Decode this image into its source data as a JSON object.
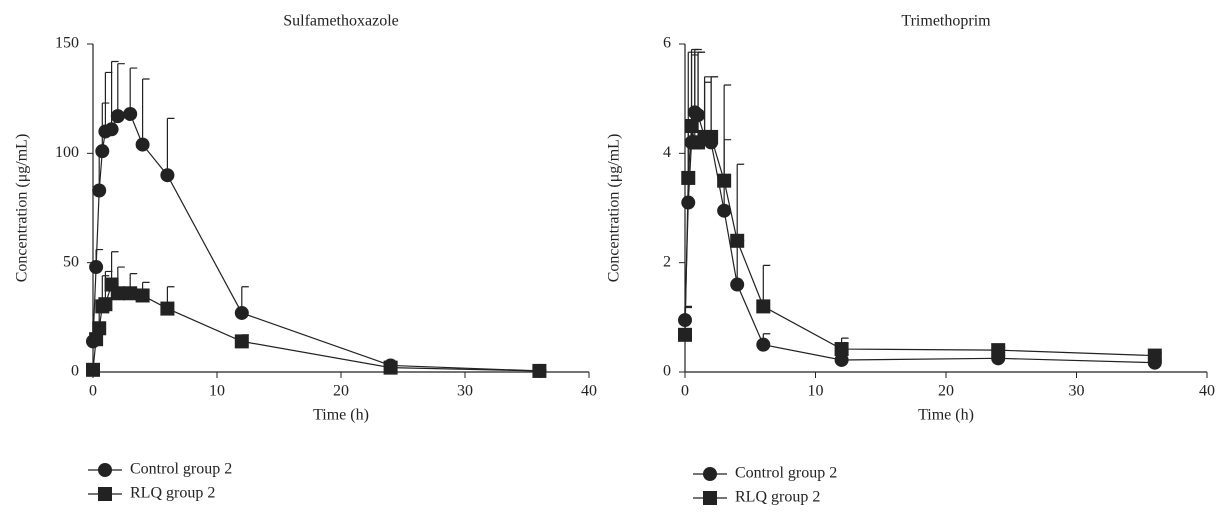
{
  "chart_data": [
    {
      "type": "line",
      "title": "Sulfamethoxazole",
      "x_label": "Time (h)",
      "y_label": "Concentration (μg/mL)",
      "x": [
        0,
        0.25,
        0.5,
        0.75,
        1,
        1.5,
        2,
        3,
        4,
        6,
        12,
        24,
        36
      ],
      "xlim": [
        0,
        40
      ],
      "xticks": [
        0,
        10,
        20,
        30,
        40
      ],
      "ylim": [
        0,
        150
      ],
      "yticks": [
        0,
        50,
        100,
        150
      ],
      "series": [
        {
          "name": "Control group 2",
          "color": "#222222",
          "marker": "circle",
          "values": [
            14,
            48,
            83,
            101,
            110,
            111,
            117,
            118,
            104,
            90,
            27,
            3,
            0.5
          ],
          "errors": [
            2,
            8,
            17,
            22,
            27,
            31,
            24,
            21,
            30,
            26,
            12,
            1,
            0.5
          ]
        },
        {
          "name": "RLQ group 2",
          "color": "#222222",
          "marker": "square",
          "values": [
            1,
            15,
            20,
            30,
            31,
            40,
            36,
            36,
            35,
            29,
            14,
            2,
            0.5
          ],
          "errors": [
            0.5,
            5,
            10,
            14,
            15,
            15,
            12,
            9,
            6,
            10,
            3,
            1,
            0.5
          ]
        }
      ]
    },
    {
      "type": "line",
      "title": "Trimethoprim",
      "x_label": "Time (h)",
      "y_label": "Concentration (μg/mL)",
      "x": [
        0,
        0.25,
        0.5,
        0.75,
        1,
        1.5,
        2,
        3,
        4,
        6,
        12,
        24,
        36
      ],
      "xlim": [
        0,
        40
      ],
      "xticks": [
        0,
        10,
        20,
        30,
        40
      ],
      "ylim": [
        0,
        6
      ],
      "yticks": [
        0,
        2,
        4,
        6
      ],
      "series": [
        {
          "name": "Control group 2",
          "color": "#222222",
          "marker": "circle",
          "values": [
            0.95,
            3.1,
            4.2,
            4.75,
            4.7,
            4.3,
            4.2,
            2.95,
            1.6,
            0.5,
            0.22,
            0.25,
            0.17
          ],
          "errors": [
            0.25,
            1.4,
            1.6,
            1.15,
            1.15,
            1.0,
            1.2,
            1.3,
            0.8,
            0.2,
            0.1,
            0.05,
            0.05
          ]
        },
        {
          "name": "RLQ group 2",
          "color": "#222222",
          "marker": "square",
          "values": [
            0.68,
            3.55,
            4.5,
            4.2,
            4.2,
            4.3,
            4.3,
            3.5,
            2.4,
            1.2,
            0.42,
            0.4,
            0.3
          ],
          "errors": [
            0.5,
            2.3,
            1.4,
            1.65,
            1.65,
            1.1,
            1.1,
            1.75,
            1.4,
            0.75,
            0.2,
            0.05,
            0.05
          ]
        }
      ]
    }
  ]
}
